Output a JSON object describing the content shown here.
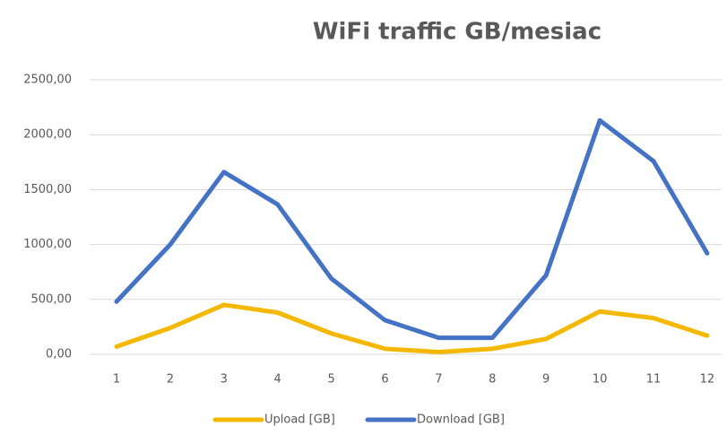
{
  "chart_data": {
    "type": "line",
    "title": "WiFi traffic GB/mesiac",
    "categories": [
      "1",
      "2",
      "3",
      "4",
      "5",
      "6",
      "7",
      "8",
      "9",
      "10",
      "11",
      "12"
    ],
    "series": [
      {
        "name": "Upload [GB]",
        "color": "#f5b800",
        "values": [
          70,
          240,
          450,
          380,
          190,
          50,
          20,
          50,
          140,
          390,
          330,
          170
        ]
      },
      {
        "name": "Download [GB]",
        "color": "#4472c4",
        "values": [
          480,
          1000,
          1660,
          1365,
          690,
          310,
          150,
          150,
          720,
          2130,
          1760,
          920
        ]
      }
    ],
    "ylim": [
      0,
      2500
    ],
    "yticks": [
      {
        "value": 0,
        "label": "0,00"
      },
      {
        "value": 500,
        "label": "500,00"
      },
      {
        "value": 1000,
        "label": "1000,00"
      },
      {
        "value": 1500,
        "label": "1500,00"
      },
      {
        "value": 2000,
        "label": "2000,00"
      },
      {
        "value": 2500,
        "label": "2500,00"
      }
    ],
    "grid": true,
    "legend": "bottom"
  }
}
